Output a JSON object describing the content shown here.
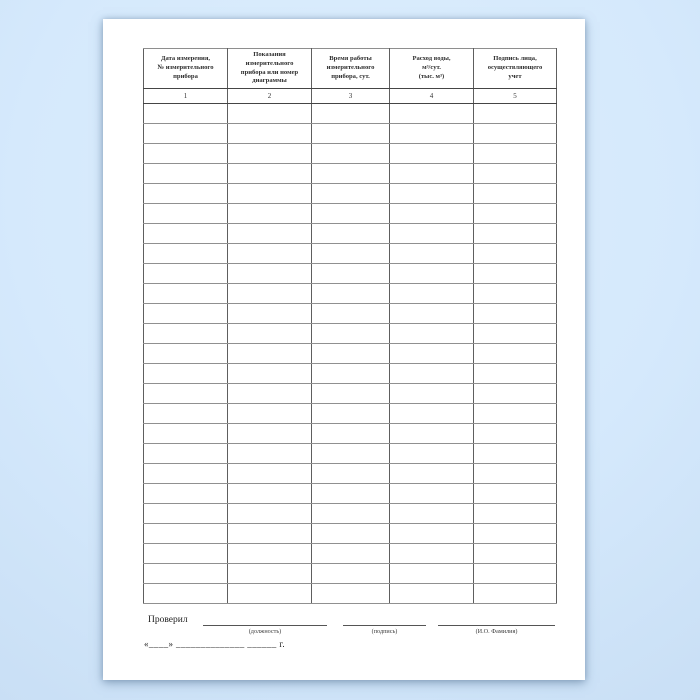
{
  "page": {
    "table": {
      "columns": [
        {
          "number": "1",
          "header": "Дата измерения,\n№ измерительного\nприбора"
        },
        {
          "number": "2",
          "header": "Показания\nизмерительного\nприбора или номер\nдиаграммы"
        },
        {
          "number": "3",
          "header": "Время работы\nизмерительного\nприбора, сут."
        },
        {
          "number": "4",
          "header": "Расход воды,\nм³/сут.\n(тыс. м³)"
        },
        {
          "number": "5",
          "header": "Подпись лица,\nосуществляющего\nучет"
        }
      ],
      "empty_row_count": 25
    },
    "footer": {
      "checked_by_label": "Проверил",
      "signature_fields": [
        "(должность)",
        "(подпись)",
        "(И.О. Фамилия)"
      ],
      "date_line": "«____» ______________  ______ г."
    },
    "colors": {
      "background": "#d5e9fc",
      "paper": "#ffffff",
      "border_dark": "#454545",
      "border_light": "#8e8e8e",
      "text": "#2f2f2f"
    }
  }
}
